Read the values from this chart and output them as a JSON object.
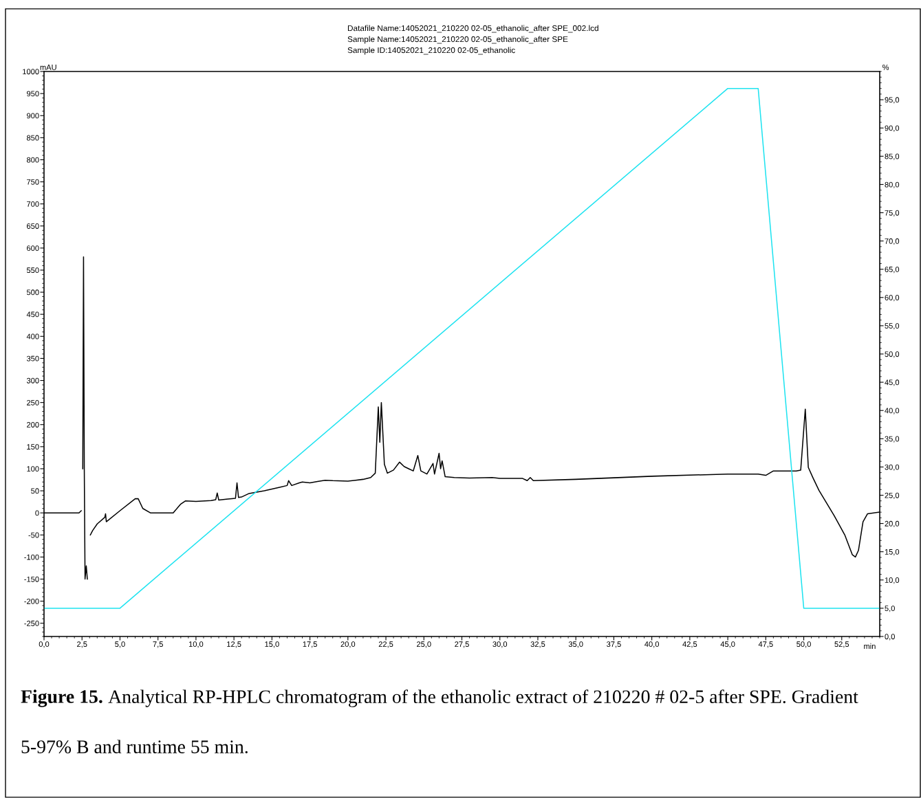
{
  "chart_data": {
    "type": "line",
    "annotations": [
      "Datafile Name:14052021_210220 02-05_ethanolic_after SPE_002.lcd",
      "Sample Name:14052021_210220 02-05_ethanolic_after SPE",
      "Sample ID:14052021_210220 02-05_ethanolic",
      "Figure 15.",
      "Analytical RP-HPLC chromatogram of the ethanolic extract of 210220 # 02-5 after SPE. Gradient 5-97% B and runtime 55 min."
    ],
    "xlabel": "min",
    "ylabel": "mAU",
    "y2label": "%",
    "series": [
      {
        "color": "#000000",
        "x": [
          0,
          1,
          2,
          2.3,
          2.45,
          2.5,
          2.55,
          2.6,
          2.65,
          2.7,
          2.78,
          2.85,
          2.9,
          3.0,
          3.05,
          3.2,
          3.5,
          4.0,
          4.05,
          4.1,
          5.0,
          6.0,
          6.2,
          6.5,
          7,
          8,
          8.5,
          9,
          9.3,
          10,
          11,
          11.3,
          11.4,
          11.5,
          12,
          12.6,
          12.7,
          12.8,
          13,
          13.5,
          14,
          14.5,
          15,
          15.5,
          16.0,
          16.1,
          16.3,
          16.8,
          17,
          17.5,
          18,
          18.5,
          19,
          20,
          20.5,
          21,
          21.5,
          21.8,
          22.0,
          22.1,
          22.2,
          22.4,
          22.6,
          23,
          23.4,
          23.7,
          24,
          24.3,
          24.6,
          24.8,
          25.2,
          25.6,
          25.7,
          26.0,
          26.1,
          26.2,
          26.4,
          27,
          28,
          29.5,
          30,
          31.5,
          31.8,
          32,
          32.2,
          35,
          40,
          45,
          47,
          47.5,
          48,
          49.5,
          49.8,
          50.1,
          50.3,
          50.6,
          51,
          52,
          52.7,
          53.2,
          53.4,
          53.6,
          53.9,
          54.2,
          55
        ],
        "values": [
          0,
          0,
          0,
          0,
          5,
          null,
          100,
          580,
          100,
          -150,
          -120,
          -150,
          null,
          null,
          -50,
          -40,
          -25,
          -10,
          -2,
          -20,
          5,
          32,
          32,
          10,
          0,
          0,
          0,
          20,
          27,
          26,
          28,
          30,
          45,
          29,
          31,
          33,
          68,
          35,
          36,
          44,
          47,
          50,
          54,
          58,
          62,
          73,
          62,
          68,
          70,
          68,
          71,
          74,
          73,
          72,
          74,
          76,
          80,
          90,
          240,
          160,
          250,
          110,
          90,
          97,
          115,
          105,
          100,
          95,
          130,
          95,
          88,
          112,
          88,
          135,
          100,
          118,
          82,
          80,
          79,
          80,
          78,
          78,
          73,
          80,
          73,
          76,
          83,
          88,
          88,
          85,
          95,
          95,
          97,
          235,
          103,
          80,
          51,
          -6,
          -50,
          -95,
          -100,
          -85,
          -20,
          -2,
          2
        ]
      },
      {
        "color": "#1ee3f0",
        "axis": "y2",
        "x": [
          0,
          5,
          45,
          47,
          50,
          55
        ],
        "values": [
          5,
          5,
          97,
          97,
          5,
          5
        ]
      }
    ],
    "xlim": [
      0,
      55
    ],
    "ylim": [
      -280,
      1000
    ],
    "y2lim": [
      0,
      100
    ],
    "xticks": [
      {
        "value": 0,
        "label": "0,0"
      },
      {
        "value": 2.5,
        "label": "2,5"
      },
      {
        "value": 5,
        "label": "5,0"
      },
      {
        "value": 7.5,
        "label": "7,5"
      },
      {
        "value": 10,
        "label": "10,0"
      },
      {
        "value": 12.5,
        "label": "12,5"
      },
      {
        "value": 15,
        "label": "15,0"
      },
      {
        "value": 17.5,
        "label": "17,5"
      },
      {
        "value": 20,
        "label": "20,0"
      },
      {
        "value": 22.5,
        "label": "22,5"
      },
      {
        "value": 25,
        "label": "25,0"
      },
      {
        "value": 27.5,
        "label": "27,5"
      },
      {
        "value": 30,
        "label": "30,0"
      },
      {
        "value": 32.5,
        "label": "32,5"
      },
      {
        "value": 35,
        "label": "35,0"
      },
      {
        "value": 37.5,
        "label": "37,5"
      },
      {
        "value": 40,
        "label": "40,0"
      },
      {
        "value": 42.5,
        "label": "42,5"
      },
      {
        "value": 45,
        "label": "45,0"
      },
      {
        "value": 47.5,
        "label": "47,5"
      },
      {
        "value": 50,
        "label": "50,0"
      },
      {
        "value": 52.5,
        "label": "52,5"
      }
    ],
    "yticks": [
      -250,
      -200,
      -150,
      -100,
      -50,
      0,
      50,
      100,
      150,
      200,
      250,
      300,
      350,
      400,
      450,
      500,
      550,
      600,
      650,
      700,
      750,
      800,
      850,
      900,
      950,
      1000
    ],
    "y2ticks": [
      {
        "value": 0,
        "label": "0,0"
      },
      {
        "value": 5,
        "label": "5,0"
      },
      {
        "value": 10,
        "label": "10,0"
      },
      {
        "value": 15,
        "label": "15,0"
      },
      {
        "value": 20,
        "label": "20,0"
      },
      {
        "value": 25,
        "label": "25,0"
      },
      {
        "value": 30,
        "label": "30,0"
      },
      {
        "value": 35,
        "label": "35,0"
      },
      {
        "value": 40,
        "label": "40,0"
      },
      {
        "value": 45,
        "label": "45,0"
      },
      {
        "value": 50,
        "label": "50,0"
      },
      {
        "value": 55,
        "label": "55,0"
      },
      {
        "value": 60,
        "label": "60,0"
      },
      {
        "value": 65,
        "label": "65,0"
      },
      {
        "value": 70,
        "label": "70,0"
      },
      {
        "value": 75,
        "label": "75,0"
      },
      {
        "value": 80,
        "label": "80,0"
      },
      {
        "value": 85,
        "label": "85,0"
      },
      {
        "value": 90,
        "label": "90,0"
      },
      {
        "value": 95,
        "label": "95,0"
      }
    ],
    "grid": false,
    "legend": false,
    "line_style": "solid",
    "marker": "none"
  }
}
